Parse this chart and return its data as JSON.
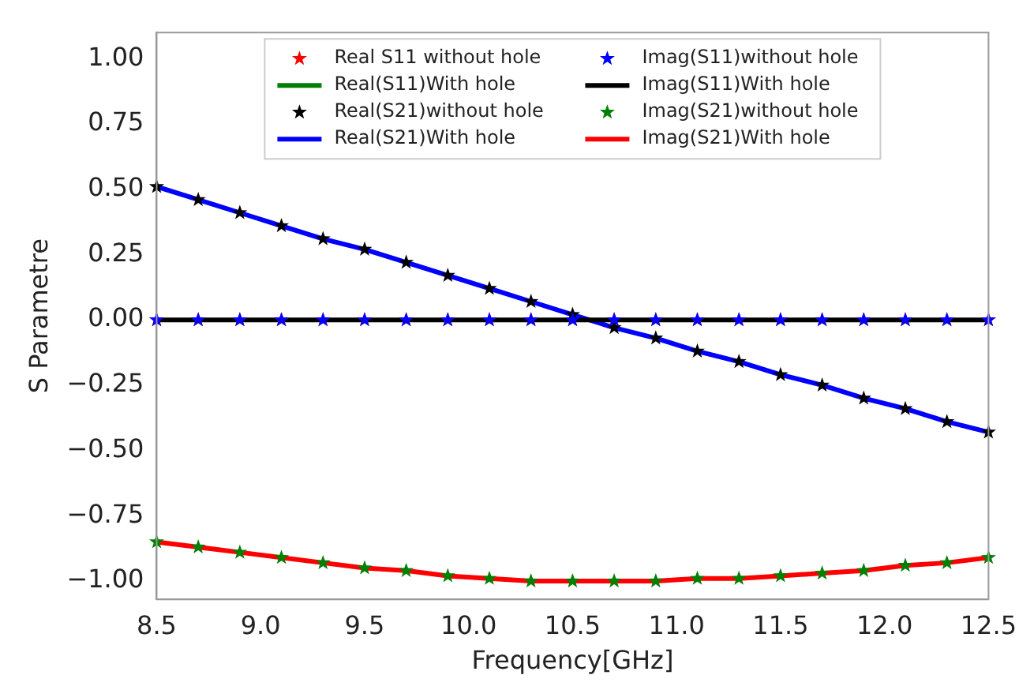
{
  "chart_data": {
    "type": "line",
    "xlabel": "Frequency[GHz]",
    "ylabel": "S Parametre",
    "x": [
      8.5,
      8.7,
      8.9,
      9.1,
      9.3,
      9.5,
      9.7,
      9.9,
      10.1,
      10.3,
      10.5,
      10.7,
      10.9,
      11.1,
      11.3,
      11.5,
      11.7,
      11.9,
      12.1,
      12.3,
      12.5
    ],
    "series": [
      {
        "name": "Real S11 without hole",
        "type": "scatter",
        "marker": "star",
        "color": "#ff0000",
        "values": [
          0,
          0,
          0,
          0,
          0,
          0,
          0,
          0,
          0,
          0,
          0,
          0,
          0,
          0,
          0,
          0,
          0,
          0,
          0,
          0,
          0
        ]
      },
      {
        "name": "Real(S11)With hole",
        "color": "#008000",
        "values": [
          null,
          null,
          null,
          null,
          null,
          null,
          null,
          null,
          null,
          null,
          null,
          null,
          null,
          null,
          null,
          null,
          null,
          null,
          null,
          null,
          null
        ]
      },
      {
        "name": "Real(S21)without hole",
        "type": "scatter",
        "marker": "star",
        "color": "#000000",
        "values": [
          0.51,
          0.46,
          0.41,
          0.36,
          0.31,
          0.27,
          0.22,
          0.17,
          0.12,
          0.07,
          0.02,
          -0.03,
          -0.07,
          -0.12,
          -0.16,
          -0.21,
          -0.25,
          -0.3,
          -0.34,
          -0.39,
          -0.43
        ]
      },
      {
        "name": "Real(S21)With hole",
        "color": "#0000ff",
        "values": [
          0.51,
          0.46,
          0.41,
          0.36,
          0.31,
          0.27,
          0.22,
          0.17,
          0.12,
          0.07,
          0.02,
          -0.03,
          -0.07,
          -0.12,
          -0.16,
          -0.21,
          -0.25,
          -0.3,
          -0.34,
          -0.39,
          -0.43
        ]
      },
      {
        "name": "Imag(S11)without hole",
        "type": "scatter",
        "marker": "star",
        "color": "#0000ff",
        "values": [
          0,
          0,
          0,
          0,
          0,
          0,
          0,
          0,
          0,
          0,
          0,
          0,
          0,
          0,
          0,
          0,
          0,
          0,
          0,
          0,
          0
        ]
      },
      {
        "name": "Imag(S11)With hole",
        "color": "#000000",
        "values": [
          0,
          0,
          0,
          0,
          0,
          0,
          0,
          0,
          0,
          0,
          0,
          0,
          0,
          0,
          0,
          0,
          0,
          0,
          0,
          0,
          0
        ]
      },
      {
        "name": "Imag(S21)without hole",
        "type": "scatter",
        "marker": "star",
        "color": "#008000",
        "values": [
          -0.85,
          -0.87,
          -0.89,
          -0.91,
          -0.93,
          -0.95,
          -0.96,
          -0.98,
          -0.99,
          -1.0,
          -1.0,
          -1.0,
          -1.0,
          -0.99,
          -0.99,
          -0.98,
          -0.97,
          -0.96,
          -0.94,
          -0.93,
          -0.91
        ]
      },
      {
        "name": "Imag(S21)With hole",
        "color": "#ff0000",
        "values": [
          -0.85,
          -0.87,
          -0.89,
          -0.91,
          -0.93,
          -0.95,
          -0.96,
          -0.98,
          -0.99,
          -1.0,
          -1.0,
          -1.0,
          -1.0,
          -0.99,
          -0.99,
          -0.98,
          -0.97,
          -0.96,
          -0.94,
          -0.93,
          -0.91
        ]
      }
    ],
    "xlim": [
      8.5,
      12.5
    ],
    "xticks": [
      8.5,
      {
        "value": 9,
        "label": "9.0"
      },
      9.5,
      {
        "value": 10,
        "label": "10.0"
      },
      10.5,
      {
        "value": 11,
        "label": "11.0"
      },
      11.5,
      {
        "value": 12,
        "label": "12.0"
      },
      12.5
    ],
    "ylim": [
      -1.07,
      1.1
    ],
    "yticks": [
      {
        "value": -1,
        "label": "−1.00"
      },
      {
        "value": -0.75,
        "label": "−0.75"
      },
      {
        "value": -0.5,
        "label": "−0.50"
      },
      {
        "value": -0.25,
        "label": "−0.25"
      },
      {
        "value": 0,
        "label": "0.00"
      },
      {
        "value": 0.25,
        "label": "0.25"
      },
      {
        "value": 0.5,
        "label": "0.50"
      },
      {
        "value": 0.75,
        "label": "0.75"
      },
      {
        "value": 1,
        "label": "1.00"
      }
    ],
    "grid": false,
    "legend": "top"
  }
}
